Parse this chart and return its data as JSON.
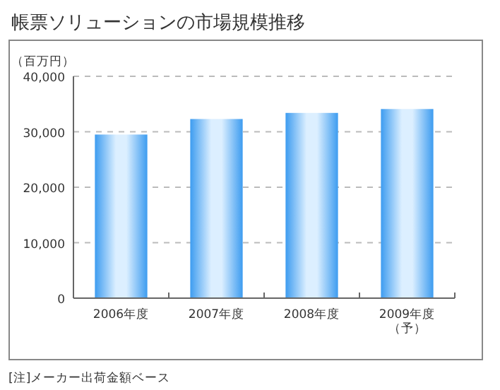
{
  "chart_data": {
    "type": "bar",
    "title": "帳票ソリューションの市場規模推移",
    "ylabel": "（百万円）",
    "categories": [
      "2006年度",
      "2007年度",
      "2008年度",
      "2009年度（予）"
    ],
    "values": [
      29500,
      32300,
      33400,
      34100
    ],
    "color": "#3d9cf0",
    "ylim": [
      0,
      40000
    ],
    "yticks": [
      0,
      {
        "value": 10000,
        "label": "10,000"
      },
      {
        "value": 20000,
        "label": "20,000"
      },
      {
        "value": 30000,
        "label": "30,000"
      },
      {
        "value": 40000,
        "label": "40,000"
      }
    ],
    "grid": "y",
    "annotations": [
      "[注]メーカー出荷金額ベース"
    ]
  }
}
